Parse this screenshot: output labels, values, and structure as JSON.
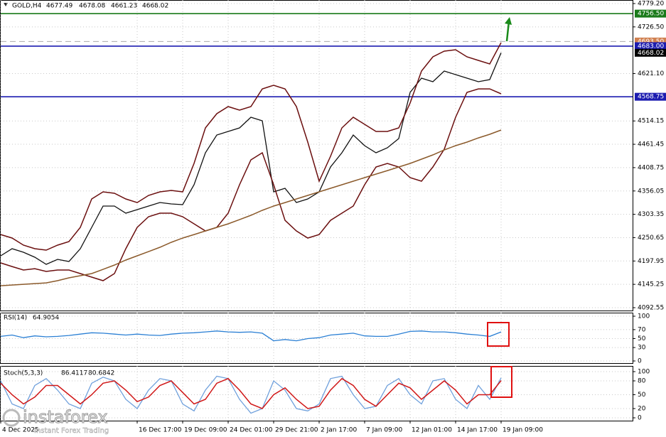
{
  "chart_data": [
    {
      "type": "line",
      "title": "GOLD,H4",
      "ohlc": [
        4677.49,
        4678.08,
        4661.23,
        4668.02
      ],
      "categories": [
        "4 Dec 2025",
        null,
        null,
        null,
        null,
        null,
        null,
        null,
        null,
        null,
        null,
        null,
        "16 Dec 17:00",
        null,
        null,
        null,
        "19 Dec 09:00",
        null,
        null,
        null,
        "24 Dec 01:00",
        null,
        null,
        null,
        "29 Dec 21:00",
        null,
        null,
        null,
        "2 Jan 17:00",
        null,
        null,
        null,
        "7 Jan 09:00",
        null,
        null,
        null,
        "12 Jan 01:00",
        null,
        null,
        null,
        "14 Jan 17:00",
        null,
        null,
        null,
        "19 Jan 09:00"
      ],
      "series": [
        {
          "color": "#111111",
          "values": [
            4209.7,
            4225.7,
            4217.7,
            4206.5,
            4190.4,
            4201.7,
            4196.8,
            4225.7,
            4273.8,
            4322.0,
            4322.0,
            4305.9,
            4314.0,
            4322.0,
            4330.0,
            4326.8,
            4325.2,
            4370.1,
            4442.3,
            4482.4,
            4490.4,
            4498.5,
            4522.5,
            4514.5,
            4354.1,
            4362.1,
            4330.0,
            4338.0,
            4354.1,
            4410.2,
            4442.3,
            4482.4,
            4458.4,
            4442.3,
            4453.5,
            4474.4,
            4578.7,
            4610.8,
            4602.8,
            4626.8,
            4618.8,
            4610.8,
            4602.8,
            4607.6,
            4668.02
          ]
        },
        {
          "color": "#6b0f0f",
          "values": [
            4257.7,
            4249.7,
            4233.7,
            4225.7,
            4222.5,
            4233.7,
            4241.7,
            4273.8,
            4338.0,
            4354.0,
            4350.8,
            4338.0,
            4329.9,
            4346.0,
            4354.0,
            4357.2,
            4354.0,
            4418.2,
            4498.4,
            4530.5,
            4546.5,
            4538.5,
            4546.5,
            4586.6,
            4594.7,
            4586.6,
            4546.5,
            4466.3,
            4378.1,
            4434.2,
            4498.4,
            4522.5,
            4506.4,
            4490.4,
            4490.4,
            4498.4,
            4554.6,
            4626.8,
            4658.8,
            4671.7,
            4674.9,
            4658.8,
            4650.8,
            4642.8,
            4690.9
          ]
        },
        {
          "color": "#6b0f0f",
          "values": [
            4193.6,
            4185.5,
            4177.5,
            4180.7,
            4174.3,
            4177.5,
            4177.5,
            4169.5,
            4161.5,
            4153.5,
            4169.5,
            4225.7,
            4273.8,
            4297.9,
            4305.9,
            4305.9,
            4297.9,
            4281.8,
            4265.8,
            4273.8,
            4305.9,
            4370.1,
            4426.2,
            4442.3,
            4370.1,
            4289.8,
            4265.8,
            4249.7,
            4257.7,
            4289.8,
            4305.9,
            4321.9,
            4370.1,
            4410.2,
            4418.2,
            4410.2,
            4386.1,
            4378.1,
            4410.2,
            4450.3,
            4522.5,
            4578.6,
            4586.6,
            4586.6,
            4575.4
          ]
        },
        {
          "color": "#8b5a2b",
          "values": [
            4142.2,
            4143.8,
            4145.4,
            4147.0,
            4148.6,
            4153.5,
            4159.9,
            4164.7,
            4169.5,
            4179.1,
            4188.8,
            4200.0,
            4209.6,
            4219.2,
            4228.9,
            4240.1,
            4249.7,
            4257.7,
            4265.8,
            4273.8,
            4281.8,
            4291.4,
            4301.1,
            4312.3,
            4321.9,
            4329.9,
            4338.0,
            4346.0,
            4354.0,
            4362.0,
            4370.1,
            4378.1,
            4386.1,
            4394.1,
            4402.1,
            4410.2,
            4418.2,
            4427.8,
            4437.4,
            4448.7,
            4458.3,
            4466.3,
            4475.9,
            4484.0,
            4493.6
          ]
        }
      ],
      "ylim": [
        4092.55,
        4779.2
      ],
      "yticks": [
        4092.55,
        4145.25,
        4197.95,
        4250.65,
        4303.35,
        4356.05,
        4408.75,
        4461.45,
        4514.15,
        {
          "value": 4621.1,
          "label": "4621.10"
        },
        {
          "value": 4726.5,
          "label": "4726.50"
        },
        {
          "value": 4779.2,
          "label": "4779.20"
        }
      ],
      "grid": true,
      "levels": [
        {
          "value": 4756.5,
          "label": "4756.50",
          "color": "#1a7a1a",
          "style": "solid"
        },
        {
          "value": 4693.5,
          "label": "4693.50",
          "color": "#d08050",
          "style": "dashed"
        },
        {
          "value": 4683.0,
          "label": "4683.00",
          "color": "#1c1cb0",
          "style": "solid"
        },
        {
          "value": 4668.02,
          "color": "#000000",
          "style": "none"
        },
        {
          "value": 4568.75,
          "label": "4568.75",
          "color": "#1c1cb0",
          "style": "solid"
        }
      ]
    },
    {
      "type": "line",
      "title": "RSI(14)",
      "reading": 64.9054,
      "series": [
        {
          "color": "#2a7fd4",
          "values": [
            55,
            58,
            52,
            56,
            54,
            55,
            57,
            60,
            63,
            62,
            60,
            58,
            60,
            58,
            57,
            60,
            62,
            63,
            65,
            67,
            65,
            64,
            65,
            62,
            45,
            48,
            45,
            50,
            52,
            58,
            60,
            62,
            56,
            55,
            55,
            60,
            66,
            67,
            65,
            65,
            63,
            60,
            58,
            55,
            64.9054
          ]
        }
      ],
      "ylim": [
        0,
        100
      ],
      "yticks": [
        0,
        30,
        50,
        70,
        100
      ],
      "grid": true
    },
    {
      "type": "line",
      "title": "Stoch(5,3,3)",
      "readings": [
        86.4117,
        80.6842
      ],
      "series": [
        {
          "color": "#6fa0dc",
          "values": [
            80,
            30,
            20,
            70,
            85,
            60,
            30,
            20,
            75,
            88,
            80,
            40,
            20,
            60,
            85,
            80,
            30,
            15,
            60,
            90,
            85,
            40,
            10,
            20,
            80,
            60,
            20,
            15,
            30,
            85,
            90,
            50,
            20,
            25,
            70,
            85,
            50,
            30,
            80,
            85,
            40,
            20,
            70,
            40,
            86.4117
          ]
        },
        {
          "color": "#d01818",
          "values": [
            75,
            50,
            30,
            45,
            70,
            70,
            50,
            30,
            50,
            75,
            80,
            60,
            35,
            45,
            70,
            80,
            55,
            30,
            40,
            75,
            85,
            60,
            30,
            20,
            50,
            65,
            40,
            20,
            25,
            60,
            85,
            70,
            40,
            25,
            50,
            75,
            65,
            40,
            60,
            80,
            60,
            30,
            50,
            50,
            80.6842
          ]
        }
      ],
      "ylim": [
        0,
        100
      ],
      "yticks": [
        0,
        20,
        50,
        80,
        100
      ],
      "grid": true
    }
  ],
  "watermark": {
    "brand": "instaforex",
    "tagline": "Instant Forex Trading"
  }
}
